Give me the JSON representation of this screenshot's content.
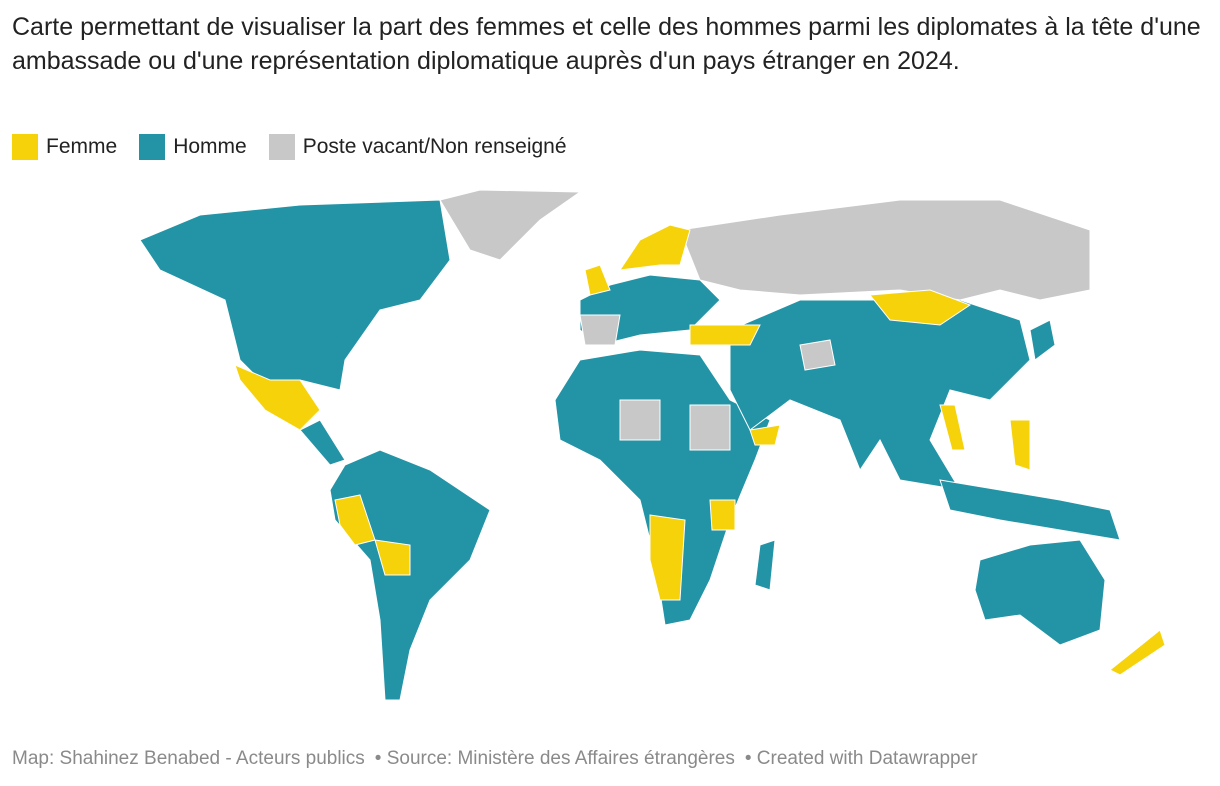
{
  "header": {
    "title": "Carte permettant de visualiser la part des femmes et celle des hommes parmi les diplomates à la tête d'une ambassade ou d'une représentation diplomatique auprès d'un pays étranger en 2024."
  },
  "legend": [
    {
      "label": "Femme",
      "color": "#f6d20a"
    },
    {
      "label": "Homme",
      "color": "#2393a6"
    },
    {
      "label": "Poste vacant/Non renseigné",
      "color": "#c8c8c8"
    }
  ],
  "footer": {
    "byline": "Map: Shahinez Benabed - Acteurs publics",
    "source": "• Source: Ministère des Affaires étrangères",
    "credit": "• Created with Datawrapper"
  }
}
